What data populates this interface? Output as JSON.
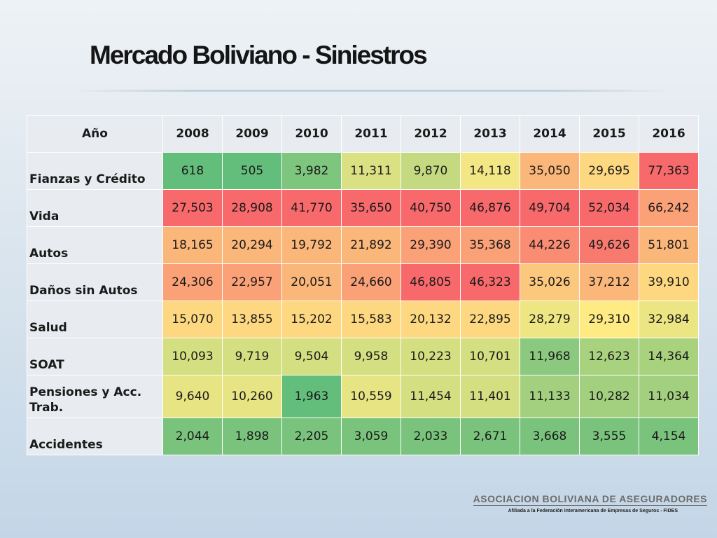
{
  "title": "Mercado Boliviano - Siniestros",
  "chart_data": {
    "type": "table",
    "title": "Mercado Boliviano - Siniestros",
    "header_label": "Año",
    "columns": [
      "2008",
      "2009",
      "2010",
      "2011",
      "2012",
      "2013",
      "2014",
      "2015",
      "2016"
    ],
    "rows": [
      {
        "label": "Fianzas y Crédito",
        "values": [
          "618",
          "505",
          "3,982",
          "11,311",
          "9,870",
          "14,118",
          "35,050",
          "29,695",
          "77,363"
        ]
      },
      {
        "label": "Vida",
        "values": [
          "27,503",
          "28,908",
          "41,770",
          "35,650",
          "40,750",
          "46,876",
          "49,704",
          "52,034",
          "66,242"
        ]
      },
      {
        "label": "Autos",
        "values": [
          "18,165",
          "20,294",
          "19,792",
          "21,892",
          "29,390",
          "35,368",
          "44,226",
          "49,626",
          "51,801"
        ]
      },
      {
        "label": "Daños sin Autos",
        "values": [
          "24,306",
          "22,957",
          "20,051",
          "24,660",
          "46,805",
          "46,323",
          "35,026",
          "37,212",
          "39,910"
        ]
      },
      {
        "label": "Salud",
        "values": [
          "15,070",
          "13,855",
          "15,202",
          "15,583",
          "20,132",
          "22,895",
          "28,279",
          "29,310",
          "32,984"
        ]
      },
      {
        "label": "SOAT",
        "values": [
          "10,093",
          "9,719",
          "9,504",
          "9,958",
          "10,223",
          "10,701",
          "11,968",
          "12,623",
          "14,364"
        ]
      },
      {
        "label": "Pensiones y Acc. Trab.",
        "values": [
          "9,640",
          "10,260",
          "1,963",
          "10,559",
          "11,454",
          "11,401",
          "11,133",
          "10,282",
          "11,034"
        ]
      },
      {
        "label": "Accidentes",
        "values": [
          "2,044",
          "1,898",
          "2,205",
          "3,059",
          "2,033",
          "2,671",
          "3,668",
          "3,555",
          "4,154"
        ]
      }
    ],
    "cell_colors": [
      [
        "#63be7b",
        "#63be7b",
        "#7ec57e",
        "#d9e182",
        "#c5da80",
        "#f2e784",
        "#fbb77a",
        "#fed880",
        "#f8696b"
      ],
      [
        "#f8696b",
        "#f8696b",
        "#f8696b",
        "#f8696b",
        "#f8696b",
        "#f8696b",
        "#f8696b",
        "#f8696b",
        "#fba177"
      ],
      [
        "#fbb77a",
        "#fbb77a",
        "#fbb77a",
        "#fbb77a",
        "#fba177",
        "#fba177",
        "#fa8c73",
        "#f87a6f",
        "#fbb77a"
      ],
      [
        "#fba177",
        "#fba177",
        "#fbb77a",
        "#fba177",
        "#f8696b",
        "#f8696b",
        "#fcc87d",
        "#fbb77a",
        "#fed880"
      ],
      [
        "#fed880",
        "#fed880",
        "#fed880",
        "#fed880",
        "#fed880",
        "#fed880",
        "#eee683",
        "#ffeb84",
        "#ece583"
      ],
      [
        "#d3df81",
        "#d3df81",
        "#d3df81",
        "#d3df81",
        "#d3df81",
        "#d3df81",
        "#8bc97e",
        "#a9d27f",
        "#a9d27f"
      ],
      [
        "#e7e483",
        "#e7e483",
        "#63be7b",
        "#e7e483",
        "#d3df81",
        "#d3df81",
        "#a3d07f",
        "#a3d07f",
        "#a3d07f"
      ],
      [
        "#79c37c",
        "#79c37c",
        "#79c37c",
        "#79c37c",
        "#79c37c",
        "#79c37c",
        "#79c37c",
        "#79c37c",
        "#79c37c"
      ]
    ]
  },
  "footer": {
    "organization": "ASOCIACION BOLIVIANA DE ASEGURADORES",
    "affiliation": "Afiliada a la Federación Interamericana de Empresas de Seguros - FIDES"
  }
}
